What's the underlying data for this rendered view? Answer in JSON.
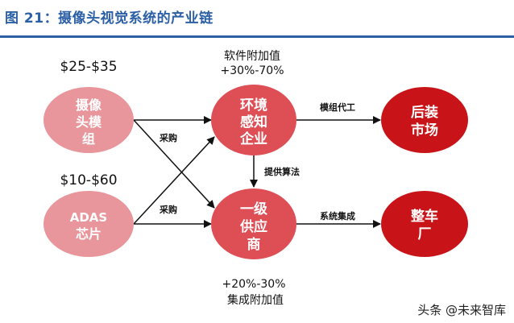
{
  "title": "图 21：摄像头视觉系统的产业链",
  "nodes": {
    "camera_module": {
      "lines": [
        "摄像",
        "头模",
        "组"
      ],
      "color": "#e8959b"
    },
    "adas_chip": {
      "lines": [
        "ADAS",
        "芯片"
      ],
      "color": "#e8959b"
    },
    "environment_perception": {
      "lines": [
        "环境",
        "感知",
        "企业"
      ],
      "color": "#dd4e55"
    },
    "tier1_supplier": {
      "lines": [
        "一级",
        "供应",
        "商"
      ],
      "color": "#dd4e55"
    },
    "aftermarket": {
      "lines": [
        "后装",
        "市场"
      ],
      "color": "#c81418"
    },
    "oem": {
      "lines": [
        "整车",
        "厂"
      ],
      "color": "#c81418"
    }
  },
  "labels": {
    "camera_price": "$25-$35",
    "chip_price": "$10-$60",
    "software_value": "软件附加值",
    "software_value_pct": "+30%-70%",
    "integration_value_pct": "+20%-30%",
    "integration_value": "集成附加值",
    "purchase_top": "采购",
    "purchase_bottom": "采购",
    "module_oem": "模组代工",
    "provide_algorithm": "提供算法",
    "system_integration": "系统集成"
  },
  "watermark": "头条 @未来智库"
}
